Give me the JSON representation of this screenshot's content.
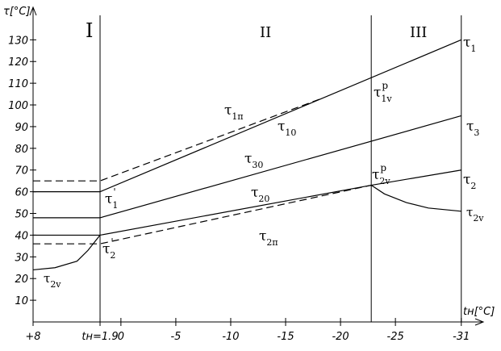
{
  "chart_data": {
    "type": "line",
    "ylabel": "τ[°C]",
    "xlabel": "tн[°C]",
    "xlim": [
      8,
      -33
    ],
    "ylim": [
      0,
      145
    ],
    "xticks": [
      {
        "value": 8,
        "label": "+8"
      },
      {
        "value": 1.9,
        "label": "tн=1.9"
      },
      0,
      -5,
      -10,
      -15,
      -20,
      -25,
      -31
    ],
    "yticks": [
      10,
      20,
      30,
      40,
      50,
      60,
      70,
      80,
      90,
      100,
      110,
      120,
      130
    ],
    "vlines": [
      1.9,
      -22.8,
      -31
    ],
    "series": [
      {
        "color": "#000000",
        "dashed": false,
        "x": [
          8,
          1.9,
          -31
        ],
        "values": [
          60,
          60,
          130
        ]
      },
      {
        "color": "#000000",
        "dashed": true,
        "x": [
          8,
          1.9,
          -18.4
        ],
        "values": [
          65,
          65,
          103.2
        ]
      },
      {
        "color": "#000000",
        "dashed": false,
        "x": [
          8,
          1.9,
          -31
        ],
        "values": [
          48,
          48,
          95
        ]
      },
      {
        "color": "#000000",
        "dashed": false,
        "x": [
          8,
          1.9,
          -22.8,
          -31
        ],
        "values": [
          40,
          40,
          63,
          70
        ]
      },
      {
        "color": "#000000",
        "dashed": true,
        "x": [
          8,
          1.9,
          -22.8
        ],
        "values": [
          36,
          36,
          63
        ]
      },
      {
        "color": "#000000",
        "dashed": false,
        "x": [
          8,
          6,
          4,
          3,
          1.9,
          null,
          -22.8,
          -24,
          -26,
          -28,
          -31
        ],
        "values": [
          24,
          25,
          28,
          33,
          40,
          null,
          63,
          59,
          55,
          52.5,
          51
        ]
      }
    ],
    "annotations": [
      {
        "text": "I"
      },
      {
        "text": "II"
      },
      {
        "text": "III"
      },
      {
        "text": "τ",
        "sub": "1"
      },
      {
        "text": "τ",
        "sub": "3"
      },
      {
        "text": "τ",
        "sub": "2"
      },
      {
        "text": "τ",
        "sub": "2v"
      },
      {
        "text": "τ",
        "sub": "1п"
      },
      {
        "text": "τ",
        "sub": "10"
      },
      {
        "text": "τ",
        "sub": "30"
      },
      {
        "text": "τ",
        "sub": "20"
      },
      {
        "text": "τ",
        "sub": "2п"
      },
      {
        "text": "τ",
        "sub": "1v",
        "sup": "p"
      },
      {
        "text": "τ",
        "sub": "2v",
        "sup": "p"
      },
      {
        "text": "τ",
        "sub": "1",
        "sup": "'"
      },
      {
        "text": "τ",
        "sub": "2",
        "sup": "'"
      },
      {
        "text": "τ",
        "sub": "2v"
      }
    ]
  }
}
